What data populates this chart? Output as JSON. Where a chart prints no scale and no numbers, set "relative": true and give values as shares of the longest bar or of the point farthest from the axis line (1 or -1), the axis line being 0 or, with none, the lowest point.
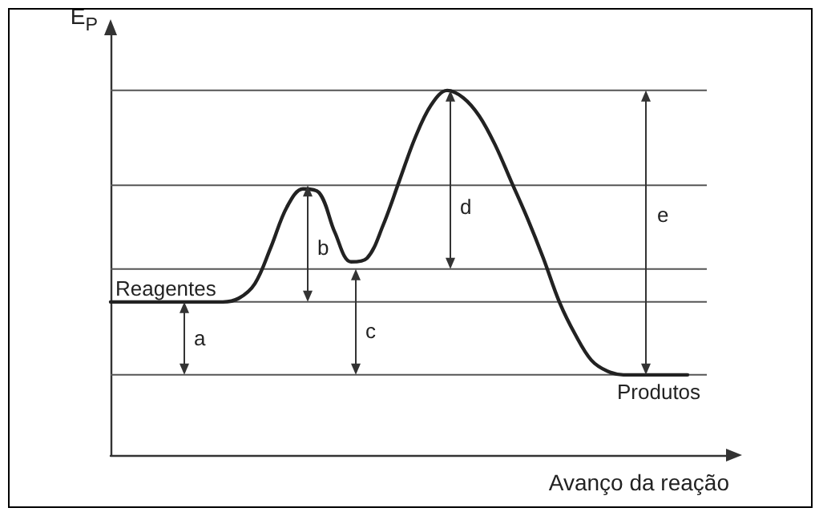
{
  "chart_data": {
    "type": "line",
    "relative": true,
    "xlabel": "Avanço da reação",
    "ylabel": "E$_{P}$",
    "color": "#222222",
    "categories": [
      null,
      null,
      null,
      null,
      null,
      null,
      null,
      null,
      null,
      null,
      null,
      null,
      null,
      null,
      null,
      null,
      null,
      null,
      null,
      null,
      null,
      null,
      null,
      null,
      null,
      null,
      null,
      null,
      null,
      null,
      null,
      null,
      null,
      null,
      null,
      null,
      null,
      null
    ],
    "values": [
      0.42,
      0.42,
      0.42,
      0.42,
      0.42,
      0.42,
      0.42,
      0.42,
      0.43,
      0.47,
      0.57,
      0.68,
      0.73,
      0.72,
      0.61,
      0.53,
      0.54,
      0.63,
      0.75,
      0.87,
      0.96,
      1,
      0.98,
      0.93,
      0.85,
      0.75,
      0.65,
      0.54,
      0.42,
      0.33,
      0.26,
      0.23,
      0.22,
      0.22,
      0.22,
      0.22,
      0.22,
      null
    ],
    "ref_lines": [
      {
        "axis": "y",
        "value": 1,
        "color": "#555555"
      },
      {
        "axis": "y",
        "value": 0.74,
        "color": "#555555"
      },
      {
        "axis": "y",
        "value": 0.51,
        "color": "#555555"
      },
      {
        "axis": "y",
        "value": 0.42,
        "color": "#555555"
      },
      {
        "axis": "y",
        "value": 0.22,
        "color": "#555555"
      }
    ],
    "annotations": [
      {
        "text": "Reagentes",
        "y": 0.42
      },
      {
        "text": "Produtos",
        "y": 0.22
      },
      "a",
      "b",
      "c",
      "d",
      "e"
    ]
  }
}
